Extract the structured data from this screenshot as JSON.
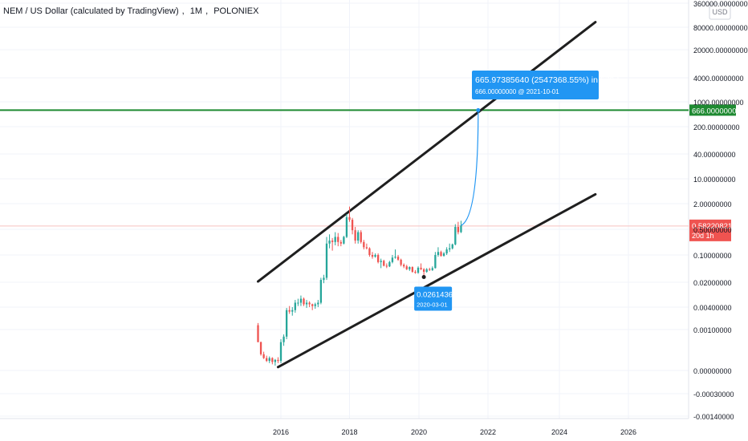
{
  "header": {
    "symbol": "NEM / US Dollar (calculated by TradingView)",
    "interval": "1M",
    "exchange": "POLONIEX"
  },
  "currency": "USD",
  "colors": {
    "up": "#26a69a",
    "down": "#ef5350",
    "channel": "#1f1f1f",
    "target_line": "#1f8a32",
    "projection": "#2196f3"
  },
  "chart_data": {
    "type": "candlestick",
    "y_scale": "log",
    "y_tick_labels": [
      "360000.00000000",
      "80000.00000000",
      "20000.00000000",
      "4000.00000000",
      "1000.00000000",
      "200.00000000",
      "40.00000000",
      "10.00000000",
      "2.00000000",
      "0.50000000",
      "0.10000000",
      "0.02000000",
      "0.00400000",
      "0.00100000",
      "0.00000000",
      "-0.00030000",
      "-0.00140000"
    ],
    "x_tick_labels": [
      "2016",
      "2018",
      "2020",
      "2022",
      "2024",
      "2026"
    ],
    "ohlc_approx": [
      [
        "2015-05",
        0.0014,
        0.0016,
        0.0005,
        0.0005
      ],
      [
        "2015-06",
        0.0005,
        0.00052,
        0.00022,
        0.00024
      ],
      [
        "2015-07",
        0.00024,
        0.00028,
        0.00018,
        0.00019
      ],
      [
        "2015-08",
        0.00019,
        0.00022,
        0.00015,
        0.00016
      ],
      [
        "2015-09",
        0.00016,
        0.00021,
        0.00014,
        0.00019
      ],
      [
        "2015-10",
        0.00019,
        0.0002,
        0.00013,
        0.00015
      ],
      [
        "2015-11",
        0.00015,
        0.00018,
        0.00012,
        0.00017
      ],
      [
        "2015-12",
        0.00017,
        0.0002,
        0.00014,
        0.00016
      ],
      [
        "2016-01",
        0.00016,
        0.0006,
        0.00014,
        0.0005
      ],
      [
        "2016-02",
        0.0005,
        0.0008,
        0.0004,
        0.0007
      ],
      [
        "2016-03",
        0.0007,
        0.004,
        0.0006,
        0.0035
      ],
      [
        "2016-04",
        0.0035,
        0.0045,
        0.0028,
        0.0032
      ],
      [
        "2016-05",
        0.0032,
        0.0042,
        0.0025,
        0.0035
      ],
      [
        "2016-06",
        0.0035,
        0.0065,
        0.003,
        0.0055
      ],
      [
        "2016-07",
        0.0055,
        0.007,
        0.0045,
        0.0055
      ],
      [
        "2016-08",
        0.0055,
        0.0085,
        0.0045,
        0.007
      ],
      [
        "2016-09",
        0.007,
        0.0075,
        0.0045,
        0.005
      ],
      [
        "2016-10",
        0.005,
        0.0065,
        0.004,
        0.0055
      ],
      [
        "2016-11",
        0.0055,
        0.006,
        0.0042,
        0.005
      ],
      [
        "2016-12",
        0.005,
        0.0052,
        0.0035,
        0.0045
      ],
      [
        "2017-01",
        0.0045,
        0.0055,
        0.0038,
        0.005
      ],
      [
        "2017-02",
        0.005,
        0.0065,
        0.0042,
        0.0055
      ],
      [
        "2017-03",
        0.0055,
        0.025,
        0.005,
        0.022
      ],
      [
        "2017-04",
        0.022,
        0.03,
        0.018,
        0.025
      ],
      [
        "2017-05",
        0.025,
        0.3,
        0.022,
        0.2
      ],
      [
        "2017-06",
        0.2,
        0.35,
        0.15,
        0.24
      ],
      [
        "2017-07",
        0.24,
        0.28,
        0.13,
        0.22
      ],
      [
        "2017-08",
        0.22,
        0.4,
        0.18,
        0.3
      ],
      [
        "2017-09",
        0.3,
        0.38,
        0.17,
        0.22
      ],
      [
        "2017-10",
        0.22,
        0.25,
        0.17,
        0.2
      ],
      [
        "2017-11",
        0.2,
        0.32,
        0.19,
        0.3
      ],
      [
        "2017-12",
        0.3,
        1.2,
        0.28,
        1.0
      ],
      [
        "2018-01",
        1.0,
        1.9,
        0.75,
        0.85
      ],
      [
        "2018-02",
        0.85,
        0.95,
        0.35,
        0.45
      ],
      [
        "2018-03",
        0.45,
        0.55,
        0.2,
        0.24
      ],
      [
        "2018-04",
        0.24,
        0.45,
        0.2,
        0.4
      ],
      [
        "2018-05",
        0.4,
        0.45,
        0.2,
        0.22
      ],
      [
        "2018-06",
        0.22,
        0.25,
        0.14,
        0.16
      ],
      [
        "2018-07",
        0.16,
        0.2,
        0.14,
        0.15
      ],
      [
        "2018-08",
        0.15,
        0.16,
        0.09,
        0.1
      ],
      [
        "2018-09",
        0.1,
        0.12,
        0.08,
        0.09
      ],
      [
        "2018-10",
        0.09,
        0.11,
        0.085,
        0.1
      ],
      [
        "2018-11",
        0.1,
        0.11,
        0.06,
        0.065
      ],
      [
        "2018-12",
        0.065,
        0.08,
        0.045,
        0.07
      ],
      [
        "2019-01",
        0.07,
        0.075,
        0.05,
        0.052
      ],
      [
        "2019-02",
        0.052,
        0.06,
        0.045,
        0.05
      ],
      [
        "2019-03",
        0.05,
        0.07,
        0.048,
        0.065
      ],
      [
        "2019-04",
        0.065,
        0.1,
        0.06,
        0.085
      ],
      [
        "2019-05",
        0.085,
        0.14,
        0.08,
        0.09
      ],
      [
        "2019-06",
        0.09,
        0.1,
        0.07,
        0.075
      ],
      [
        "2019-07",
        0.075,
        0.08,
        0.05,
        0.055
      ],
      [
        "2019-08",
        0.055,
        0.06,
        0.045,
        0.05
      ],
      [
        "2019-09",
        0.05,
        0.055,
        0.04,
        0.042
      ],
      [
        "2019-10",
        0.042,
        0.05,
        0.038,
        0.048
      ],
      [
        "2019-11",
        0.048,
        0.05,
        0.034,
        0.036
      ],
      [
        "2019-12",
        0.036,
        0.04,
        0.032,
        0.034
      ],
      [
        "2020-01",
        0.034,
        0.05,
        0.032,
        0.046
      ],
      [
        "2020-02",
        0.046,
        0.06,
        0.04,
        0.042
      ],
      [
        "2020-03",
        0.042,
        0.045,
        0.026,
        0.036
      ],
      [
        "2020-04",
        0.036,
        0.045,
        0.034,
        0.042
      ],
      [
        "2020-05",
        0.042,
        0.046,
        0.038,
        0.04
      ],
      [
        "2020-06",
        0.04,
        0.05,
        0.038,
        0.045
      ],
      [
        "2020-07",
        0.045,
        0.12,
        0.044,
        0.1
      ],
      [
        "2020-08",
        0.1,
        0.16,
        0.09,
        0.12
      ],
      [
        "2020-09",
        0.12,
        0.13,
        0.09,
        0.095
      ],
      [
        "2020-10",
        0.095,
        0.12,
        0.09,
        0.11
      ],
      [
        "2020-11",
        0.11,
        0.16,
        0.1,
        0.14
      ],
      [
        "2020-12",
        0.14,
        0.2,
        0.12,
        0.15
      ],
      [
        "2021-01",
        0.15,
        0.2,
        0.14,
        0.19
      ],
      [
        "2021-02",
        0.19,
        0.65,
        0.18,
        0.55
      ],
      [
        "2021-03",
        0.55,
        0.75,
        0.35,
        0.4
      ],
      [
        "2021-04",
        0.4,
        0.8,
        0.38,
        0.6
      ]
    ],
    "trendlines": {
      "upper": [
        [
          "2015-05",
          0.02
        ],
        [
          "2025-03",
          140000
        ]
      ],
      "lower": [
        [
          "2015-12",
          0.00011
        ],
        [
          "2025-03",
          4
        ]
      ]
    },
    "horizontal_line": {
      "value": 666.0,
      "label": "666.00000000"
    },
    "current_price": {
      "value": 0.58220821,
      "label": "0.58220821",
      "countdown": "20d 1h"
    },
    "projection": {
      "from": [
        "2021-04",
        0.6
      ],
      "to": [
        "2021-10",
        666.0
      ],
      "label_main": "665.97385640 (2547368.55%) in 579d",
      "label_sub": "666.00000000 @ 2021-10-01"
    },
    "low_marker": {
      "at": [
        "2020-03",
        0.0261436
      ],
      "label_main": "0.02614360",
      "label_sub": "2020-03-01"
    }
  }
}
